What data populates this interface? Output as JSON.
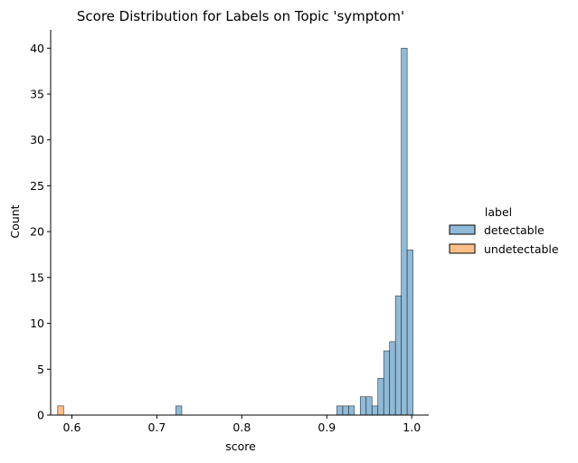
{
  "chart_data": {
    "type": "bar",
    "title": "Score Distribution for Labels on Topic 'symptom'",
    "xlabel": "score",
    "ylabel": "Count",
    "xlim": [
      0.575,
      1.02
    ],
    "ylim": [
      0,
      42
    ],
    "x_ticks": [
      0.6,
      0.7,
      0.8,
      0.9,
      1.0
    ],
    "x_tick_labels": [
      "0.6",
      "0.7",
      "0.8",
      "0.9",
      "1.0"
    ],
    "y_ticks": [
      0,
      5,
      10,
      15,
      20,
      25,
      30,
      35,
      40
    ],
    "y_tick_labels": [
      "0",
      "5",
      "10",
      "15",
      "20",
      "25",
      "30",
      "35",
      "40"
    ],
    "bin_width": 0.0069,
    "legend": {
      "title": "label",
      "placement": "right",
      "entries": [
        "detectable",
        "undetectable"
      ]
    },
    "series": [
      {
        "name": "detectable",
        "color": "#1f77b4",
        "bins": [
          {
            "x": 0.7224,
            "count": 1
          },
          {
            "x": 0.9118,
            "count": 1
          },
          {
            "x": 0.9187,
            "count": 1
          },
          {
            "x": 0.9256,
            "count": 1
          },
          {
            "x": 0.9394,
            "count": 2
          },
          {
            "x": 0.9463,
            "count": 2
          },
          {
            "x": 0.9532,
            "count": 1
          },
          {
            "x": 0.9601,
            "count": 4
          },
          {
            "x": 0.967,
            "count": 7
          },
          {
            "x": 0.9739,
            "count": 8
          },
          {
            "x": 0.9808,
            "count": 13
          },
          {
            "x": 0.9877,
            "count": 40
          },
          {
            "x": 0.9946,
            "count": 18
          }
        ]
      },
      {
        "name": "undetectable",
        "color": "#ff7f0e",
        "bins": [
          {
            "x": 0.5833,
            "count": 1
          }
        ]
      }
    ],
    "grid": false
  }
}
